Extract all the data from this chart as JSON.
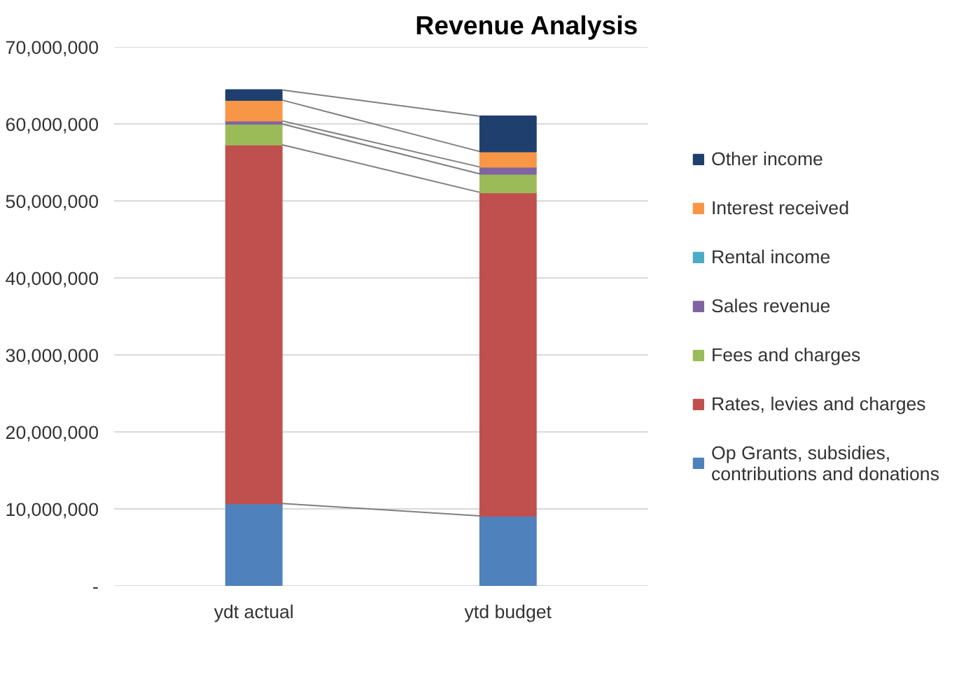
{
  "chart_data": {
    "type": "bar",
    "title": "Revenue Analysis",
    "stacked": true,
    "categories": [
      "ydt actual",
      "ytd budget"
    ],
    "series": [
      {
        "name": "Op Grants, subsidies, contributions and donations",
        "color": "#4f81bd",
        "values": [
          10700000,
          9100000
        ]
      },
      {
        "name": "Rates, levies and charges",
        "color": "#c0504d",
        "values": [
          46600000,
          42000000
        ]
      },
      {
        "name": "Fees and charges",
        "color": "#9bbb59",
        "values": [
          2700000,
          2400000
        ]
      },
      {
        "name": "Sales revenue",
        "color": "#8064a2",
        "values": [
          400000,
          900000
        ]
      },
      {
        "name": "Rental income",
        "color": "#4bacc6",
        "values": [
          null,
          null
        ]
      },
      {
        "name": "Interest received",
        "color": "#f79646",
        "values": [
          2700000,
          2000000
        ]
      },
      {
        "name": "Other income",
        "color": "#1f3f6e",
        "values": [
          1300000,
          4600000
        ]
      }
    ],
    "ylim": [
      0,
      70000000
    ],
    "yticks": [
      {
        "value": 0,
        "label": "-"
      },
      {
        "value": 10000000,
        "label": "10,000,000"
      },
      {
        "value": 20000000,
        "label": "20,000,000"
      },
      {
        "value": 30000000,
        "label": "30,000,000"
      },
      {
        "value": 40000000,
        "label": "40,000,000"
      },
      {
        "value": 50000000,
        "label": "50,000,000"
      },
      {
        "value": 60000000,
        "label": "60,000,000"
      },
      {
        "value": 70000000,
        "label": "70,000,000"
      }
    ],
    "grid": "y",
    "legend": "right"
  }
}
